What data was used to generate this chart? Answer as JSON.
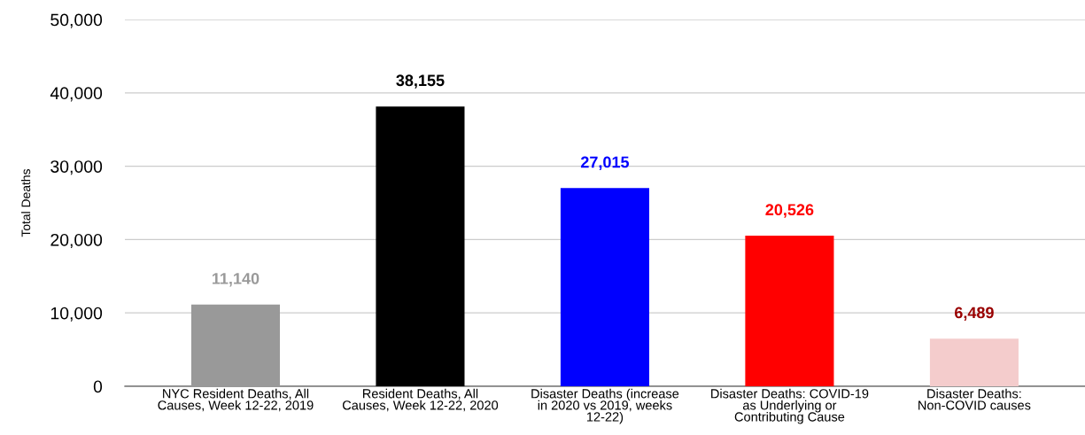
{
  "chart_data": {
    "type": "bar",
    "ylabel": "Total Deaths",
    "categories": [
      "NYC Resident Deaths, All\nCauses, Week 12-22, 2019",
      "Resident Deaths, All\nCauses, Week 12-22, 2020",
      "Disaster Deaths (increase\nin 2020 vs 2019, weeks\n12-22)",
      "Disaster Deaths: COVID-19\nas Underlying or\nContributing Cause",
      "Disaster Deaths:\nNon-COVID causes"
    ],
    "values": [
      11140,
      38155,
      27015,
      20526,
      6489
    ],
    "colors": [
      "#999999",
      "#000000",
      "#0000ff",
      "#ff0000",
      "#f4cccc"
    ],
    "value_labels": [
      "11,140",
      "38,155",
      "27,015",
      "20,526",
      "6,489"
    ],
    "ylim": [
      0,
      50000
    ],
    "yticks": [
      {
        "value": 0,
        "label": "0"
      },
      {
        "value": 10000,
        "label": "10,000"
      },
      {
        "value": 20000,
        "label": "20,000"
      },
      {
        "value": 30000,
        "label": "30,000"
      },
      {
        "value": 40000,
        "label": "40,000"
      },
      {
        "value": 50000,
        "label": "50,000"
      }
    ],
    "grid": "y",
    "legend": false
  }
}
